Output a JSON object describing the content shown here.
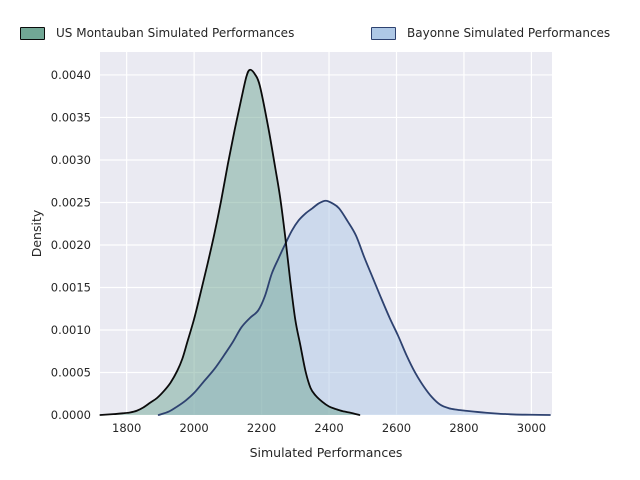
{
  "figure": {
    "background": "#ffffff",
    "plot_bg": "#eaeaf2",
    "grid_color": "#ffffff",
    "text_color": "#262626"
  },
  "chart_data": {
    "type": "area",
    "subtype": "kde-density",
    "title": "",
    "xlabel": "Simulated Performances",
    "ylabel": "Density",
    "xlim": [
      1721,
      3061
    ],
    "ylim": [
      0,
      0.00427
    ],
    "x_ticks": [
      1800,
      2000,
      2200,
      2400,
      2600,
      2800,
      3000
    ],
    "y_ticks": [
      0.0,
      0.0005,
      0.001,
      0.0015,
      0.002,
      0.0025,
      0.003,
      0.0035,
      0.004
    ],
    "grid": true,
    "legend_position": "top",
    "series": [
      {
        "key": "montauban",
        "name": "US Montauban Simulated Performances",
        "line_color": "#0b0b0b",
        "fill_color": "#71a795",
        "fill_opacity": 0.5,
        "peak": {
          "x": 2160,
          "density": 0.00406
        },
        "points": [
          [
            1722,
            0
          ],
          [
            1760,
            1e-05
          ],
          [
            1788,
            2e-05
          ],
          [
            1810,
            3e-05
          ],
          [
            1830,
            5e-05
          ],
          [
            1850,
            9e-05
          ],
          [
            1870,
            0.000145
          ],
          [
            1890,
            0.0002
          ],
          [
            1910,
            0.00028
          ],
          [
            1930,
            0.00038
          ],
          [
            1950,
            0.00052
          ],
          [
            1965,
            0.00066
          ],
          [
            1980,
            0.00086
          ],
          [
            2000,
            0.00113
          ],
          [
            2020,
            0.00145
          ],
          [
            2040,
            0.00178
          ],
          [
            2060,
            0.00213
          ],
          [
            2080,
            0.00252
          ],
          [
            2100,
            0.00295
          ],
          [
            2120,
            0.00335
          ],
          [
            2140,
            0.00372
          ],
          [
            2155,
            0.00398
          ],
          [
            2165,
            0.00406
          ],
          [
            2180,
            0.00401
          ],
          [
            2195,
            0.00387
          ],
          [
            2220,
            0.00338
          ],
          [
            2240,
            0.00292
          ],
          [
            2255,
            0.00256
          ],
          [
            2270,
            0.0021
          ],
          [
            2285,
            0.00158
          ],
          [
            2300,
            0.00112
          ],
          [
            2315,
            0.00082
          ],
          [
            2330,
            0.00052
          ],
          [
            2345,
            0.00032
          ],
          [
            2360,
            0.00023
          ],
          [
            2380,
            0.000155
          ],
          [
            2400,
            0.0001
          ],
          [
            2420,
            7e-05
          ],
          [
            2440,
            4.5e-05
          ],
          [
            2465,
            2.5e-05
          ],
          [
            2490,
            0
          ]
        ]
      },
      {
        "key": "bayonne",
        "name": "Bayonne Simulated Performances",
        "line_color": "#2e4270",
        "fill_color": "#aec8e6",
        "fill_opacity": 0.5,
        "peak": {
          "x": 2395,
          "density": 0.00252
        },
        "points": [
          [
            1895,
            0
          ],
          [
            1925,
            4e-05
          ],
          [
            1950,
            0.0001
          ],
          [
            1975,
            0.00017
          ],
          [
            2000,
            0.00026
          ],
          [
            2030,
            0.0004
          ],
          [
            2060,
            0.00054
          ],
          [
            2090,
            0.00071
          ],
          [
            2115,
            0.00086
          ],
          [
            2140,
            0.00103
          ],
          [
            2165,
            0.00114
          ],
          [
            2190,
            0.00123
          ],
          [
            2210,
            0.0014
          ],
          [
            2230,
            0.00166
          ],
          [
            2250,
            0.00184
          ],
          [
            2270,
            0.00201
          ],
          [
            2290,
            0.00217
          ],
          [
            2310,
            0.00229
          ],
          [
            2330,
            0.00237
          ],
          [
            2350,
            0.00243
          ],
          [
            2370,
            0.00249
          ],
          [
            2390,
            0.00252
          ],
          [
            2410,
            0.00249
          ],
          [
            2430,
            0.00243
          ],
          [
            2455,
            0.00228
          ],
          [
            2480,
            0.00211
          ],
          [
            2505,
            0.00185
          ],
          [
            2530,
            0.00161
          ],
          [
            2555,
            0.00137
          ],
          [
            2580,
            0.00114
          ],
          [
            2605,
            0.00093
          ],
          [
            2630,
            0.0007
          ],
          [
            2655,
            0.0005
          ],
          [
            2680,
            0.00034
          ],
          [
            2705,
            0.00021
          ],
          [
            2730,
            0.00012
          ],
          [
            2755,
            8e-05
          ],
          [
            2780,
            6.2e-05
          ],
          [
            2805,
            5e-05
          ],
          [
            2830,
            4e-05
          ],
          [
            2855,
            3e-05
          ],
          [
            2880,
            2.2e-05
          ],
          [
            2905,
            1.5e-05
          ],
          [
            2930,
            1e-05
          ],
          [
            2955,
            5e-06
          ],
          [
            3000,
            3e-06
          ],
          [
            3055,
            0
          ]
        ]
      }
    ]
  }
}
